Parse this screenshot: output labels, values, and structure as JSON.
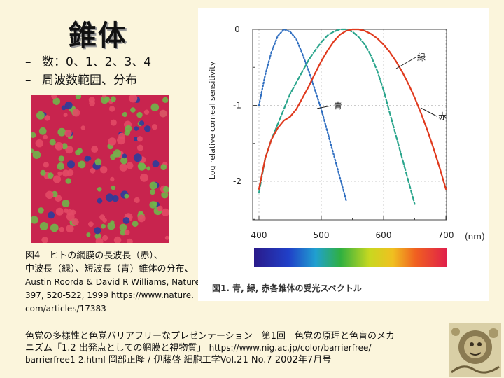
{
  "slide": {
    "title": "錐体",
    "bullets": [
      "数：0、1、2、3、4",
      "周波数範囲、分布"
    ],
    "bullet_dash": "–"
  },
  "mosaic": {
    "colors": {
      "red": "#c8244e",
      "green": "#6fb64a",
      "blue": "#2a3d9c"
    }
  },
  "caption": {
    "line1": "図4　ヒトの網膜の長波長（赤）、",
    "line2": "中波長（緑）、短波長（青）錐体の分布、",
    "line3": "Austin Roorda & David R Williams, Nature",
    "line4": "397, 520-522, 1999 https://www.nature.",
    "line5": "com/articles/17383"
  },
  "footer": {
    "line1": "色覚の多様性と色覚バリアフリーなプレゼンテーション　第1回　色覚の原理と色盲のメカ",
    "line2a": "ニズム「1.2 出発点としての網膜と視物質」",
    "line2b": "https://www.nig.ac.jp/color/barrierfree/",
    "line3a": "barrierfree1-2.html",
    "line3b": "岡部正隆 / 伊藤啓 細胞工学Vol.21 No.7 2002年7月号"
  },
  "chart_data": {
    "type": "line",
    "ylabel": "Log relative corneal sensitivity",
    "xlabel": "(nm)",
    "xlim": [
      400,
      700
    ],
    "ylim": [
      -2.4,
      0
    ],
    "x_ticks": [
      400,
      500,
      600,
      700
    ],
    "y_ticks": [
      0,
      -1,
      -2
    ],
    "x_tick_labels": [
      "400",
      "500",
      "600",
      "700"
    ],
    "y_tick_labels": [
      "0",
      "-1",
      "-2"
    ],
    "series": [
      {
        "name": "青",
        "color": "#2f6ec0",
        "style": "dotted",
        "x": [
          400,
          410,
          420,
          430,
          440,
          450,
          460,
          470,
          480,
          490,
          500,
          510,
          520,
          530,
          540
        ],
        "y": [
          -1.0,
          -0.6,
          -0.3,
          -0.09,
          0.0,
          -0.03,
          -0.13,
          -0.33,
          -0.55,
          -0.8,
          -1.05,
          -1.35,
          -1.65,
          -1.95,
          -2.25
        ]
      },
      {
        "name": "緑",
        "color": "#2aa58c",
        "style": "dashed",
        "x": [
          400,
          410,
          420,
          430,
          440,
          450,
          460,
          470,
          480,
          490,
          500,
          510,
          520,
          530,
          540,
          550,
          560,
          570,
          580,
          590,
          600,
          610,
          620,
          630,
          640,
          650
        ],
        "y": [
          -2.15,
          -1.7,
          -1.45,
          -1.25,
          -1.05,
          -0.85,
          -0.7,
          -0.55,
          -0.4,
          -0.28,
          -0.17,
          -0.08,
          -0.03,
          0.0,
          0.0,
          -0.03,
          -0.1,
          -0.2,
          -0.35,
          -0.55,
          -0.8,
          -1.1,
          -1.4,
          -1.7,
          -2.0,
          -2.3
        ]
      },
      {
        "name": "赤",
        "color": "#e03a1e",
        "style": "solid",
        "x": [
          400,
          410,
          420,
          430,
          440,
          450,
          460,
          470,
          480,
          490,
          500,
          510,
          520,
          530,
          540,
          550,
          560,
          570,
          580,
          590,
          600,
          610,
          620,
          630,
          640,
          650,
          660,
          670,
          680,
          690,
          700
        ],
        "y": [
          -2.1,
          -1.7,
          -1.45,
          -1.3,
          -1.2,
          -1.15,
          -1.05,
          -0.9,
          -0.75,
          -0.58,
          -0.42,
          -0.28,
          -0.16,
          -0.07,
          -0.02,
          0.0,
          0.0,
          -0.02,
          -0.06,
          -0.12,
          -0.2,
          -0.3,
          -0.42,
          -0.56,
          -0.72,
          -0.9,
          -1.1,
          -1.32,
          -1.56,
          -1.82,
          -2.1
        ]
      }
    ],
    "annotations": [
      "緑",
      "青",
      "赤"
    ],
    "figure_caption": "図1. 青, 緑, 赤各錐体の受光スペクトル",
    "spectrum_bar": true
  }
}
